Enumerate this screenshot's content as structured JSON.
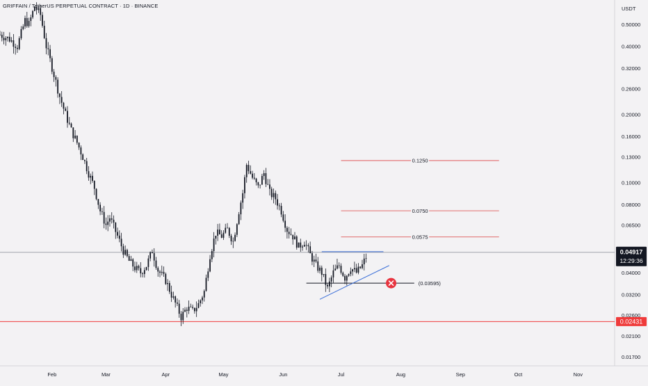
{
  "header": {
    "title": "GRIFFAIN / TetherUS PERPETUAL CONTRACT · 1D · BINANCE"
  },
  "price_axis": {
    "currency": "USDT"
  },
  "colors": {
    "background": "#f3f2f4",
    "candle": "#131722",
    "fib_level_line": "#e05a5a",
    "support_line": "#ef3b3b",
    "support_label_bg": "#ef3b3b",
    "trendline": "#3b6fd8",
    "stop_marker": "#e8343f",
    "last_price_bg": "#131722",
    "price_line": "#9598a1"
  },
  "chart_data": {
    "type": "candlestick",
    "title": "GRIFFAIN / TetherUS PERPETUAL CONTRACT · 1D · BINANCE",
    "y_scale": "log",
    "ylim": [
      0.0155,
      0.64
    ],
    "xlim": [
      "2025-01-05",
      "2025-11-20"
    ],
    "x_tick_labels": [
      {
        "date": "2025-02-01",
        "label": "Feb"
      },
      {
        "date": "2025-03-01",
        "label": "Mar"
      },
      {
        "date": "2025-04-01",
        "label": "Apr"
      },
      {
        "date": "2025-05-01",
        "label": "May"
      },
      {
        "date": "2025-06-01",
        "label": "Jun"
      },
      {
        "date": "2025-07-01",
        "label": "Jul"
      },
      {
        "date": "2025-08-01",
        "label": "Aug"
      },
      {
        "date": "2025-09-01",
        "label": "Sep"
      },
      {
        "date": "2025-10-01",
        "label": "Oct"
      },
      {
        "date": "2025-11-01",
        "label": "Nov"
      }
    ],
    "y_tick_labels": [
      "0.50000",
      "0.40000",
      "0.32000",
      "0.26000",
      "0.20000",
      "0.16000",
      "0.13000",
      "0.10000",
      "0.08000",
      "0.06500",
      "0.04000",
      "0.03200",
      "0.02600",
      "0.02100",
      "0.01700"
    ],
    "price_path": [
      [
        "2025-01-05",
        0.45
      ],
      [
        "2025-01-10",
        0.43
      ],
      [
        "2025-01-14",
        0.4
      ],
      [
        "2025-01-18",
        0.52
      ],
      [
        "2025-01-20",
        0.5
      ],
      [
        "2025-01-23",
        0.6
      ],
      [
        "2025-01-26",
        0.55
      ],
      [
        "2025-01-29",
        0.4
      ],
      [
        "2025-02-02",
        0.3
      ],
      [
        "2025-02-05",
        0.24
      ],
      [
        "2025-02-08",
        0.2
      ],
      [
        "2025-02-11",
        0.17
      ],
      [
        "2025-02-14",
        0.15
      ],
      [
        "2025-02-17",
        0.13
      ],
      [
        "2025-02-20",
        0.11
      ],
      [
        "2025-02-23",
        0.095
      ],
      [
        "2025-02-26",
        0.075
      ],
      [
        "2025-03-01",
        0.065
      ],
      [
        "2025-03-03",
        0.07
      ],
      [
        "2025-03-07",
        0.058
      ],
      [
        "2025-03-10",
        0.05
      ],
      [
        "2025-03-13",
        0.045
      ],
      [
        "2025-03-16",
        0.042
      ],
      [
        "2025-03-19",
        0.04
      ],
      [
        "2025-03-22",
        0.043
      ],
      [
        "2025-03-25",
        0.05
      ],
      [
        "2025-03-28",
        0.041
      ],
      [
        "2025-04-01",
        0.037
      ],
      [
        "2025-04-04",
        0.032
      ],
      [
        "2025-04-07",
        0.028
      ],
      [
        "2025-04-09",
        0.0255
      ],
      [
        "2025-04-12",
        0.028
      ],
      [
        "2025-04-15",
        0.027
      ],
      [
        "2025-04-18",
        0.029
      ],
      [
        "2025-04-21",
        0.033
      ],
      [
        "2025-04-24",
        0.048
      ],
      [
        "2025-04-27",
        0.06
      ],
      [
        "2025-04-30",
        0.058
      ],
      [
        "2025-05-03",
        0.062
      ],
      [
        "2025-05-06",
        0.055
      ],
      [
        "2025-05-09",
        0.075
      ],
      [
        "2025-05-11",
        0.09
      ],
      [
        "2025-05-13",
        0.12
      ],
      [
        "2025-05-16",
        0.105
      ],
      [
        "2025-05-19",
        0.095
      ],
      [
        "2025-05-22",
        0.11
      ],
      [
        "2025-05-25",
        0.09
      ],
      [
        "2025-05-28",
        0.085
      ],
      [
        "2025-05-31",
        0.075
      ],
      [
        "2025-06-03",
        0.062
      ],
      [
        "2025-06-06",
        0.058
      ],
      [
        "2025-06-09",
        0.052
      ],
      [
        "2025-06-12",
        0.055
      ],
      [
        "2025-06-15",
        0.048
      ],
      [
        "2025-06-18",
        0.043
      ],
      [
        "2025-06-21",
        0.04
      ],
      [
        "2025-06-24",
        0.034
      ],
      [
        "2025-06-27",
        0.04
      ],
      [
        "2025-06-30",
        0.043
      ],
      [
        "2025-07-03",
        0.038
      ],
      [
        "2025-07-06",
        0.042
      ],
      [
        "2025-07-09",
        0.04
      ],
      [
        "2025-07-12",
        0.043
      ],
      [
        "2025-07-14",
        0.047
      ]
    ],
    "last_price": {
      "value": 0.04917,
      "label": "0.04917",
      "countdown": "12:29:36"
    },
    "support": {
      "value": 0.02431,
      "label": "0.02431"
    },
    "target_levels": [
      {
        "value": 0.125,
        "label": "0.1250",
        "from": "2025-07-01",
        "to": "2025-09-21"
      },
      {
        "value": 0.075,
        "label": "0.0750",
        "from": "2025-07-01",
        "to": "2025-09-21"
      },
      {
        "value": 0.0575,
        "label": "0.0575",
        "from": "2025-07-01",
        "to": "2025-09-21"
      }
    ],
    "stop_level": {
      "value": 0.03595,
      "label": "(0.03595)",
      "from": "2025-06-13",
      "to": "2025-08-08"
    },
    "resistance_line": {
      "value": 0.0495,
      "from": "2025-06-21",
      "to": "2025-07-23"
    },
    "trendline": {
      "from": [
        "2025-06-20",
        0.0305
      ],
      "to": [
        "2025-07-26",
        0.043
      ]
    }
  }
}
